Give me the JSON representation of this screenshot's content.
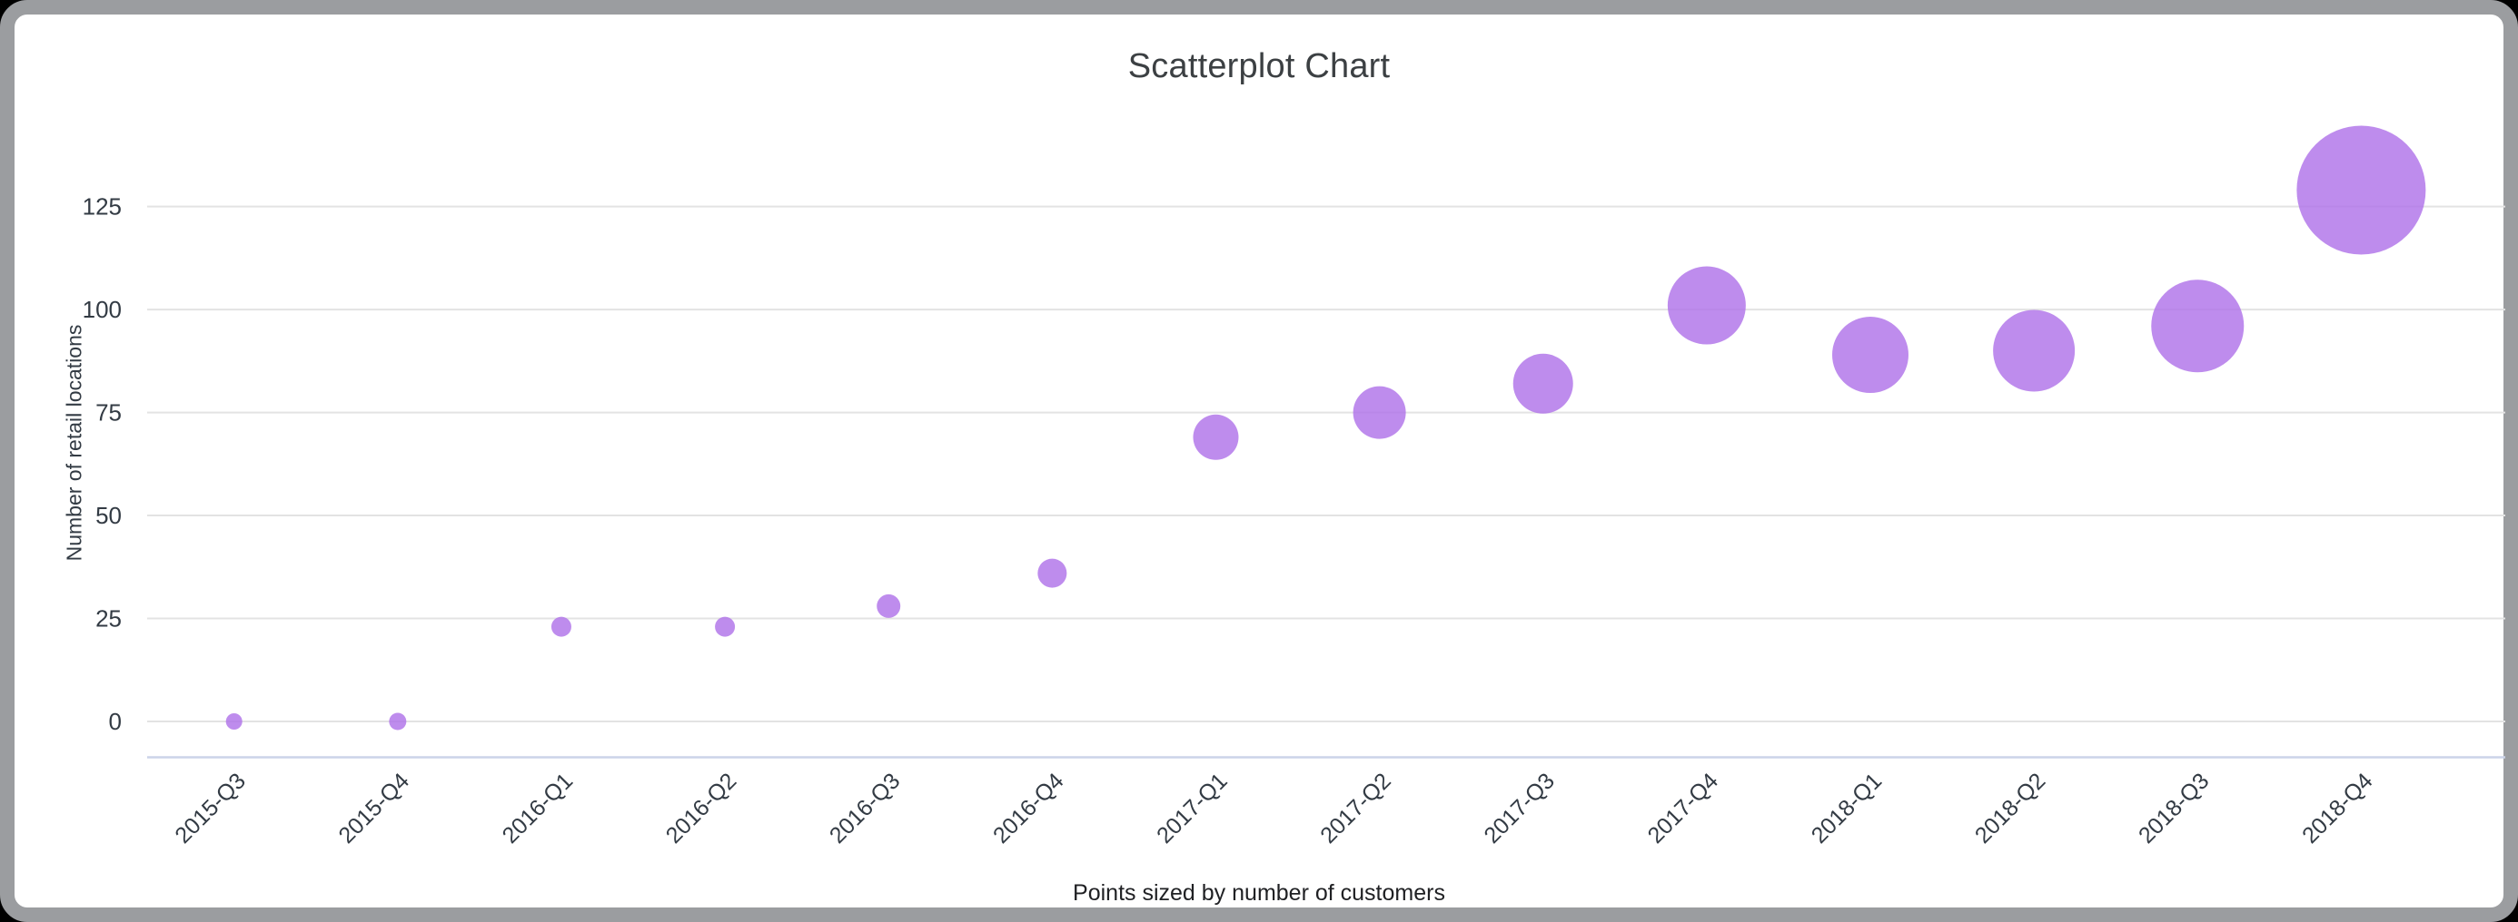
{
  "chart_data": {
    "type": "scatter",
    "title": "Scatterplot Chart",
    "xlabel": "Points sized by number of customers",
    "ylabel": "Number of retail locations",
    "categories": [
      "2015-Q3",
      "2015-Q4",
      "2016-Q1",
      "2016-Q2",
      "2016-Q3",
      "2016-Q4",
      "2017-Q1",
      "2017-Q2",
      "2017-Q3",
      "2017-Q4",
      "2018-Q1",
      "2018-Q2",
      "2018-Q3",
      "2018-Q4"
    ],
    "values": [
      0,
      0,
      23,
      23,
      28,
      36,
      69,
      75,
      82,
      101,
      89,
      90,
      96,
      129
    ],
    "point_radius_px": [
      9,
      9.5,
      11,
      11,
      13,
      16,
      25,
      29,
      33,
      43,
      42,
      45,
      51,
      71
    ],
    "yticks": [
      0,
      25,
      50,
      75,
      100,
      125
    ],
    "ylim": [
      0,
      130
    ],
    "grid": true,
    "legend": "none",
    "point_color": "#ae6fe8",
    "point_opacity": 0.8
  },
  "colors": {
    "page_background": "#000000",
    "card_background": "#ffffff",
    "card_border": "#9b9da0",
    "gridline": "#e3e3e3",
    "axis_baseline": "#ccd4e9",
    "tick_text": "#333b44",
    "title_text": "#3c4043"
  }
}
